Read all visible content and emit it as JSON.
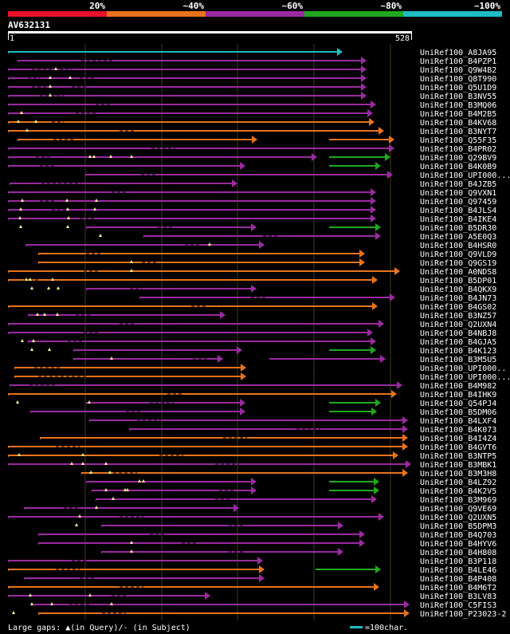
{
  "legend": {
    "segments": [
      {
        "label": "20%",
        "color": "#e8102a"
      },
      {
        "label": "~40%",
        "color": "#e8731c"
      },
      {
        "label": "~60%",
        "color": "#9a2aa0"
      },
      {
        "label": "~80%",
        "color": "#1fa81f"
      },
      {
        "label": "~100%",
        "color": "#1fbcc4"
      }
    ]
  },
  "query": {
    "name": "AV632131",
    "start": "1",
    "end": "528"
  },
  "footer": {
    "gaps_text": "Large gaps: ▲(in Query)/- (in Subject)",
    "scale_text": "=100char.",
    "scale_color": "#1fbcc4"
  },
  "hits": [
    {
      "label": "UniRef100_A8JA95",
      "category": 5
    },
    {
      "label": "UniRef100_B4PZP1",
      "category": 3
    },
    {
      "label": "UniRef100_Q9W4B2",
      "category": 3
    },
    {
      "label": "UniRef100_Q8T990",
      "category": 3
    },
    {
      "label": "UniRef100_Q5U1D9",
      "category": 3
    },
    {
      "label": "UniRef100_B3NV55",
      "category": 3
    },
    {
      "label": "UniRef100_B3MQ06",
      "category": 3
    },
    {
      "label": "UniRef100_B4M2B5",
      "category": 3
    },
    {
      "label": "UniRef100_B4KV68",
      "category": 2
    },
    {
      "label": "UniRef100_B3NYT7",
      "category": 2
    },
    {
      "label": "UniRef100_Q55F35",
      "category": 2
    },
    {
      "label": "UniRef100_B4PR02",
      "category": 3
    },
    {
      "label": "UniRef100_Q29BV9",
      "category": 3
    },
    {
      "label": "UniRef100_B4K0B9",
      "category": 3
    },
    {
      "label": "UniRef100_UPI000...",
      "category": 3
    },
    {
      "label": "UniRef100_B4JZB5",
      "category": 3
    },
    {
      "label": "UniRef100_Q9VXN1",
      "category": 3
    },
    {
      "label": "UniRef100_Q97459",
      "category": 3
    },
    {
      "label": "UniRef100_B4JLS4",
      "category": 3
    },
    {
      "label": "UniRef100_B4IKE4",
      "category": 3
    },
    {
      "label": "UniRef100_B5DR30",
      "category": 3
    },
    {
      "label": "UniRef100_A5E0Q3",
      "category": 3
    },
    {
      "label": "UniRef100_B4HSR0",
      "category": 3
    },
    {
      "label": "UniRef100_Q9VLD9",
      "category": 2
    },
    {
      "label": "UniRef100_Q9GS19",
      "category": 2
    },
    {
      "label": "UniRef100_A0NDS8",
      "category": 2
    },
    {
      "label": "UniRef100_B5DP01",
      "category": 2
    },
    {
      "label": "UniRef100_B4QKX9",
      "category": 3
    },
    {
      "label": "UniRef100_B4JN73",
      "category": 3
    },
    {
      "label": "UniRef100_B4GS02",
      "category": 2
    },
    {
      "label": "UniRef100_B3NZ57",
      "category": 3
    },
    {
      "label": "UniRef100_Q2UXN4",
      "category": 3
    },
    {
      "label": "UniRef100_B4NBJ8",
      "category": 3
    },
    {
      "label": "UniRef100_B4GJA5",
      "category": 3
    },
    {
      "label": "UniRef100_B4K123",
      "category": 3
    },
    {
      "label": "UniRef100_B3M5U5",
      "category": 3
    },
    {
      "label": "UniRef100_UPI000..",
      "category": 2
    },
    {
      "label": "UniRef100_UPI000...",
      "category": 2
    },
    {
      "label": "UniRef100_B4M982",
      "category": 3
    },
    {
      "label": "UniRef100_B4IHK9",
      "category": 2
    },
    {
      "label": "UniRef100_Q54PJ4",
      "category": 3
    },
    {
      "label": "UniRef100_B5DM06",
      "category": 3
    },
    {
      "label": "UniRef100_B4LXF4",
      "category": 3
    },
    {
      "label": "UniRef100_B4K073",
      "category": 3
    },
    {
      "label": "UniRef100_B4I4Z4",
      "category": 2
    },
    {
      "label": "UniRef100_B4GVT6",
      "category": 2
    },
    {
      "label": "UniRef100_B3NTP5",
      "category": 2
    },
    {
      "label": "UniRef100_B3MBK1",
      "category": 3
    },
    {
      "label": "UniRef100_B3M3H8",
      "category": 2
    },
    {
      "label": "UniRef100_B4LZ92",
      "category": 3
    },
    {
      "label": "UniRef100_B4K2V5",
      "category": 3
    },
    {
      "label": "UniRef100_B3M969",
      "category": 3
    },
    {
      "label": "UniRef100_Q9VE69",
      "category": 3
    },
    {
      "label": "UniRef100_Q2UXN5",
      "category": 3
    },
    {
      "label": "UniRef100_B5DPM3",
      "category": 3
    },
    {
      "label": "UniRef100_B4Q703",
      "category": 3
    },
    {
      "label": "UniRef100_B4HYV6",
      "category": 3
    },
    {
      "label": "UniRef100_B4H808",
      "category": 3
    },
    {
      "label": "UniRef100_B3P118",
      "category": 3
    },
    {
      "label": "UniRef100_B4LE46",
      "category": 2
    },
    {
      "label": "UniRef100_B4P408",
      "category": 3
    },
    {
      "label": "UniRef100_B4M6T2",
      "category": 2
    },
    {
      "label": "UniRef100_B3LV83",
      "category": 3
    },
    {
      "label": "UniRef100_C5FIS3",
      "category": 3
    },
    {
      "label": "UniRef100_P23023-2",
      "category": 2
    }
  ]
}
